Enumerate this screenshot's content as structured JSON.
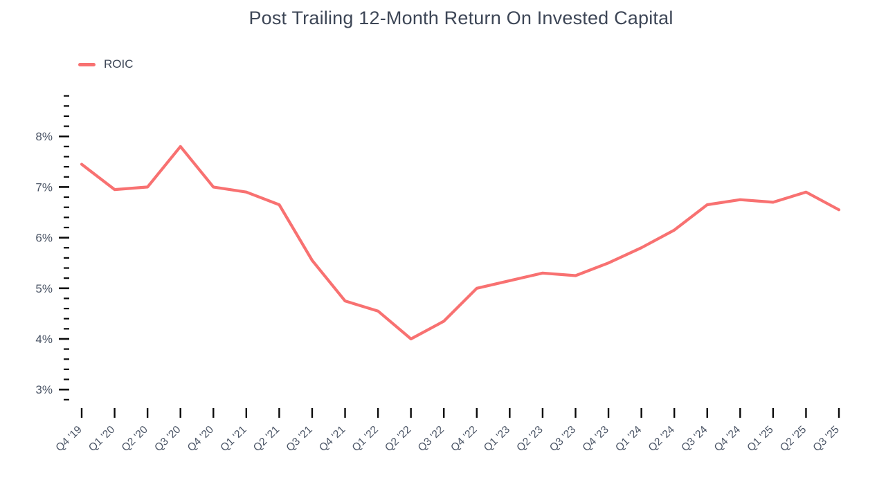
{
  "chart_data": {
    "type": "line",
    "title": "Post Trailing 12-Month Return On Invested Capital",
    "categories": [
      "Q4 '19",
      "Q1 '20",
      "Q2 '20",
      "Q3 '20",
      "Q4 '20",
      "Q1 '21",
      "Q2 '21",
      "Q3 '21",
      "Q4 '21",
      "Q1 '22",
      "Q2 '22",
      "Q3 '22",
      "Q4 '22",
      "Q1 '23",
      "Q2 '23",
      "Q3 '23",
      "Q4 '23",
      "Q1 '24",
      "Q2 '24",
      "Q3 '24",
      "Q4 '24",
      "Q1 '25",
      "Q2 '25",
      "Q3 '25"
    ],
    "series": [
      {
        "name": "ROIC",
        "color": "#F87171",
        "values": [
          7.45,
          6.95,
          7.0,
          7.8,
          7.0,
          6.9,
          6.65,
          5.55,
          4.75,
          4.55,
          4.0,
          4.35,
          5.0,
          5.15,
          5.3,
          5.25,
          5.5,
          5.8,
          6.15,
          6.65,
          6.75,
          6.7,
          6.9,
          6.55
        ]
      }
    ],
    "xlabel": "",
    "ylabel": "",
    "ylim": [
      2.8,
      8.8
    ],
    "ytick_major_values": [
      3,
      4,
      5,
      6,
      7,
      8
    ],
    "ytick_major_labels": [
      "3%",
      "4%",
      "5%",
      "6%",
      "7%",
      "8%"
    ],
    "ytick_minor_step": 0.2,
    "grid": false,
    "legend_position": "top-left",
    "colors": {
      "line": "#F87171",
      "tick": "#0a0a0a",
      "tick_label": "#4a5465",
      "title": "#3d4656",
      "background": "#ffffff"
    }
  }
}
